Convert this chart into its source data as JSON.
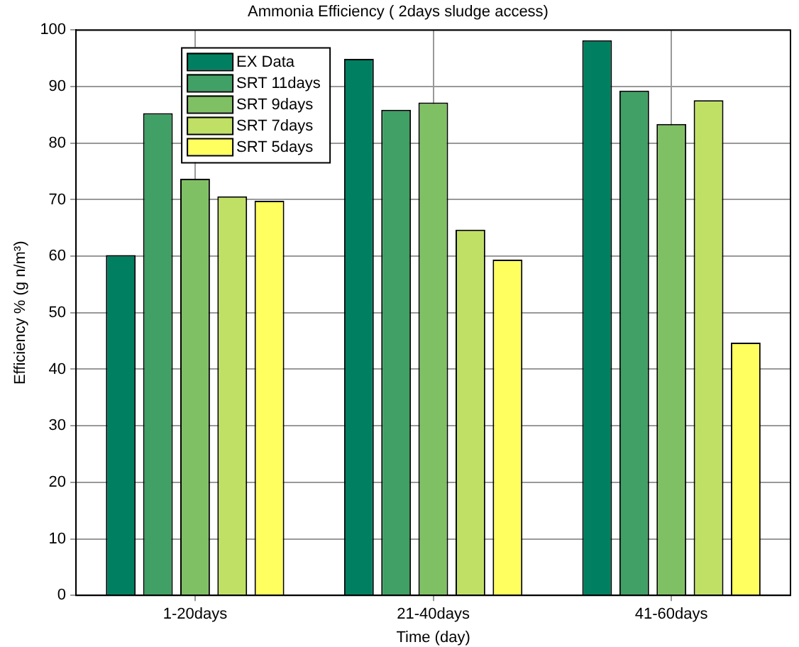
{
  "chart_data": {
    "type": "bar",
    "title": "Ammonia Efficiency ( 2days sludge access)",
    "xlabel": "Time (day)",
    "ylabel": "Efficiency % (g n/m³)",
    "categories": [
      "1-20days",
      "21-40days",
      "41-60days"
    ],
    "series": [
      {
        "name": "EX Data",
        "color": "#008060",
        "values": [
          60.2,
          94.9,
          98.2
        ]
      },
      {
        "name": "SRT 11days",
        "color": "#40a065",
        "values": [
          85.3,
          85.9,
          89.3
        ]
      },
      {
        "name": "SRT 9days",
        "color": "#80c065",
        "values": [
          73.7,
          87.2,
          83.4
        ]
      },
      {
        "name": "SRT 7days",
        "color": "#c0e065",
        "values": [
          70.6,
          64.7,
          87.6
        ]
      },
      {
        "name": "SRT 5days",
        "color": "#ffff60",
        "values": [
          69.8,
          59.4,
          44.7
        ]
      }
    ],
    "ylim": [
      0,
      100
    ],
    "yticks": [
      0,
      10,
      20,
      30,
      40,
      50,
      60,
      70,
      80,
      90,
      100
    ],
    "grid": true,
    "legend": "top left"
  }
}
